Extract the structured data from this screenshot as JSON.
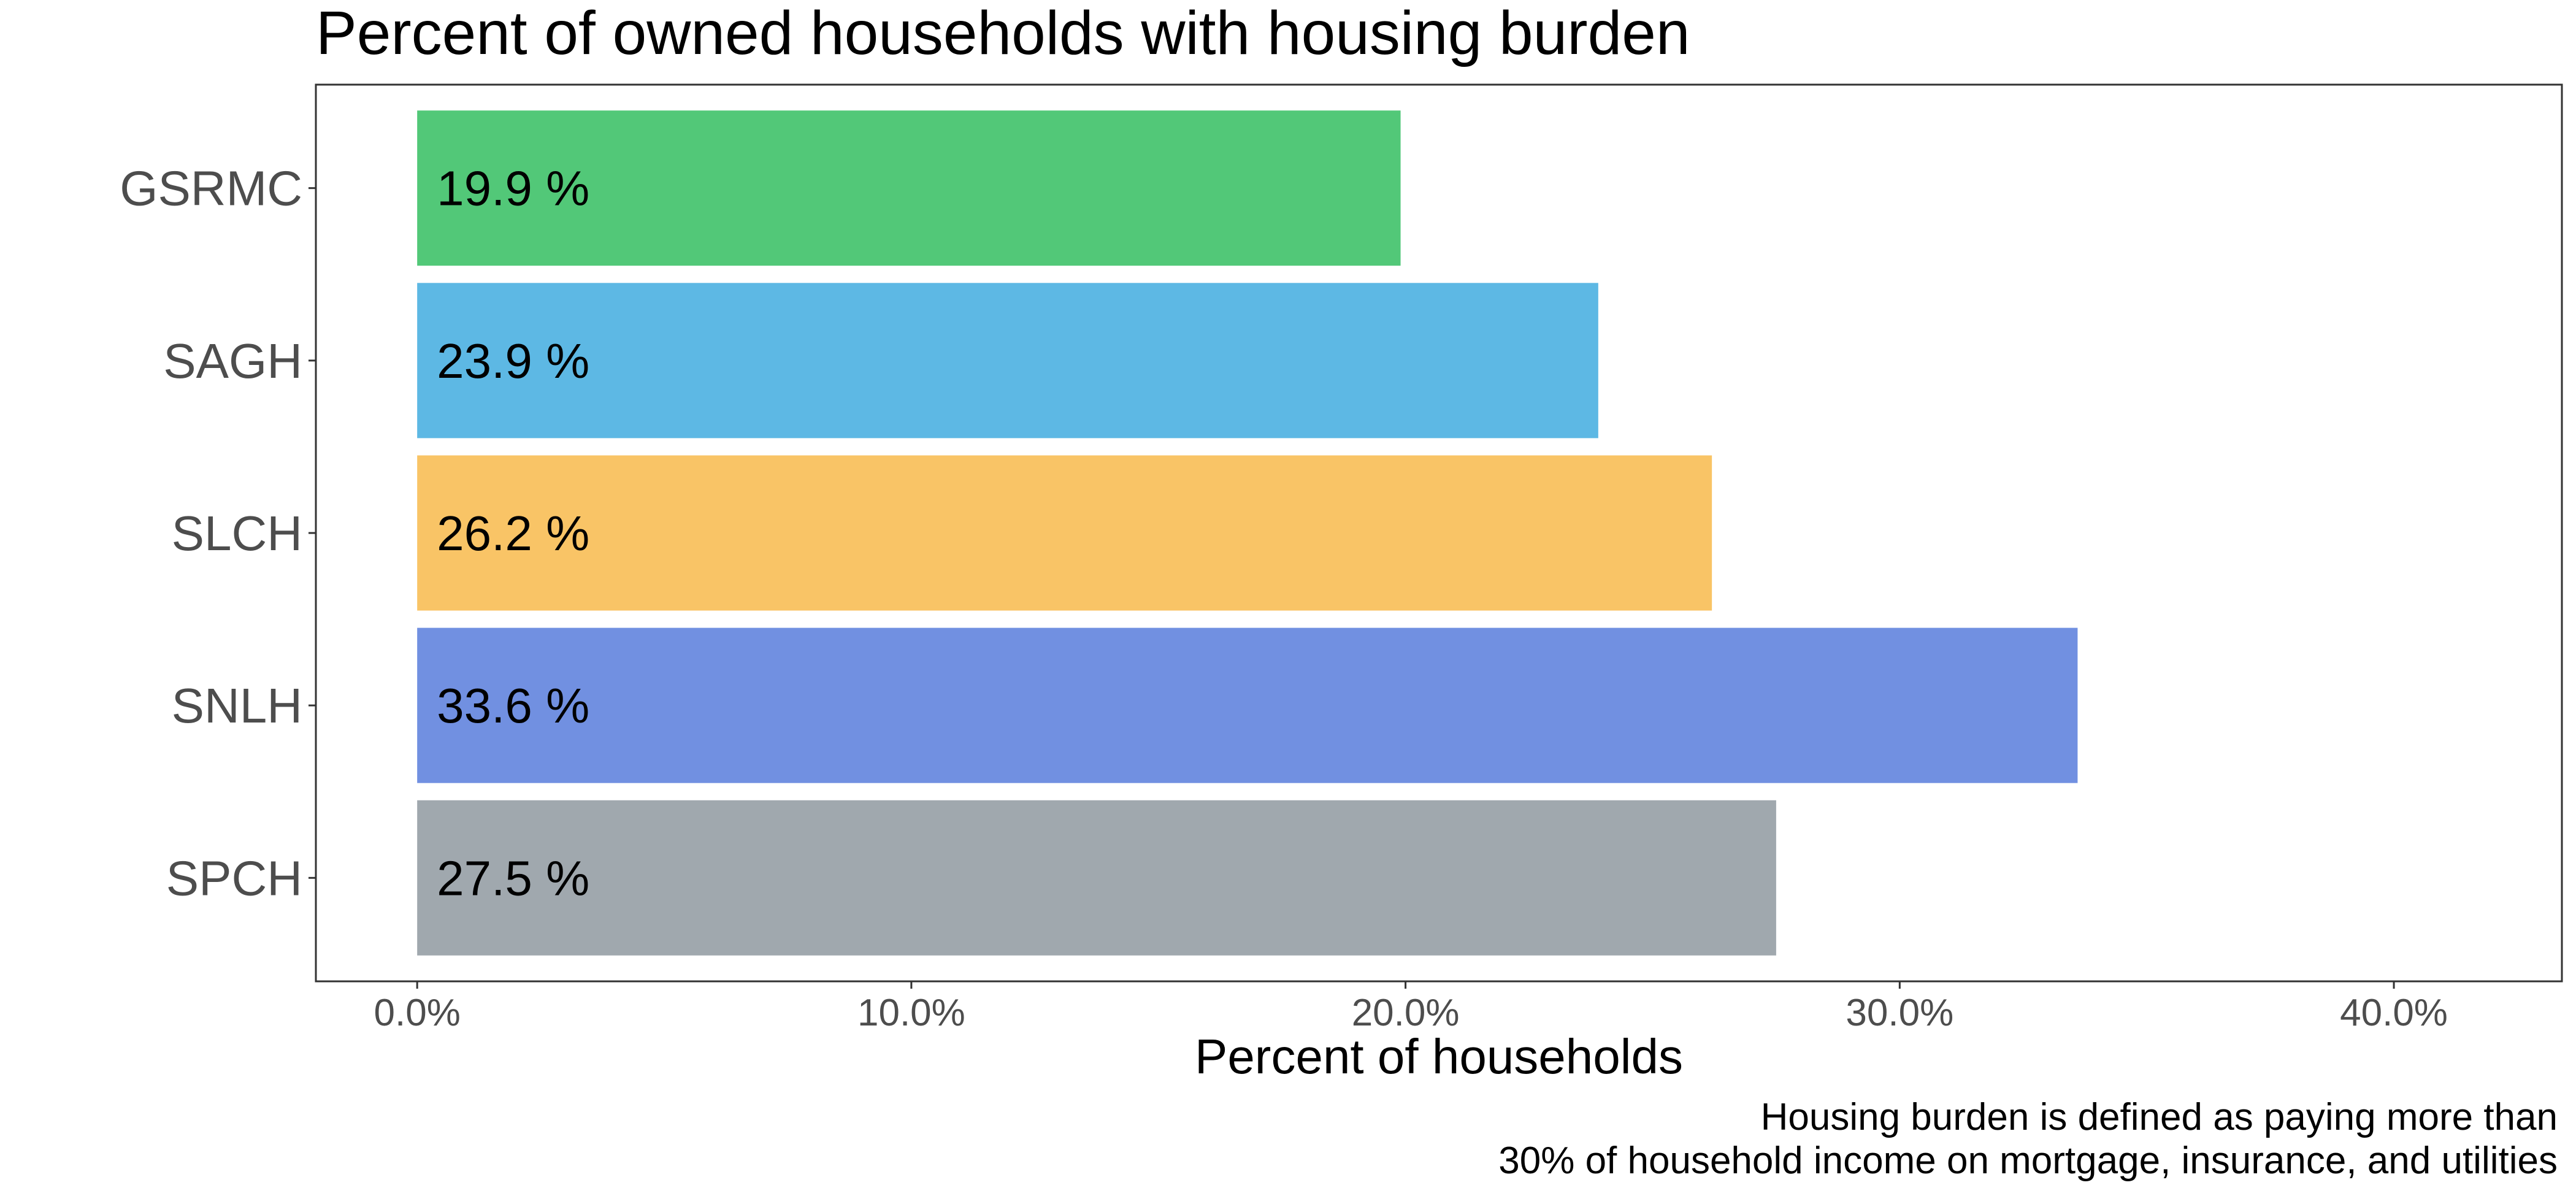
{
  "chart_data": {
    "type": "bar",
    "orientation": "horizontal",
    "title": "Percent of owned households with housing burden",
    "xlabel": "Percent of households",
    "ylabel": "",
    "caption": [
      "Housing burden is defined as paying more than",
      "30% of household income on mortgage, insurance, and utilities"
    ],
    "categories": [
      "GSRMC",
      "SAGH",
      "SLCH",
      "SNLH",
      "SPCH"
    ],
    "values": [
      19.9,
      23.9,
      26.2,
      33.6,
      27.5
    ],
    "data_labels": [
      "19.9 %",
      "23.9 %",
      "26.2 %",
      "33.6 %",
      "27.5 %"
    ],
    "colors": [
      "#52c878",
      "#5db8e4",
      "#f9c466",
      "#7190e1",
      "#a0a8ae"
    ],
    "xlim": [
      -2.05,
      43.4
    ],
    "x_ticks": [
      0,
      10,
      20,
      30,
      40
    ],
    "x_tick_labels": [
      "0.0%",
      "10.0%",
      "20.0%",
      "30.0%",
      "40.0%"
    ],
    "grid": false,
    "legend": "none"
  }
}
